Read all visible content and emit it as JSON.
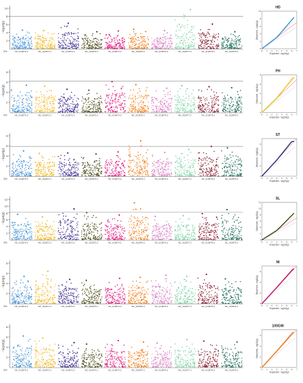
{
  "figure": {
    "chromosomes": [
      "NC_012870.2",
      "NC_012871.2",
      "NC_012872.2",
      "NC_012873.2",
      "NC_012874.2",
      "NC_012875.2",
      "NC_012876.2",
      "NC_012877.2",
      "NC_012878.2",
      "NC_012879.2"
    ],
    "chr_axis_title": "Chr",
    "manhattan_ylabel": "- log10(p)",
    "qq_ylabel": "Observed - log10(p)",
    "qq_xlabel": "Expected - log10(p)",
    "qq_x_ticks": [
      "0",
      "1",
      "2",
      "3",
      "4",
      "5",
      "6",
      "7"
    ]
  },
  "chart_data": [
    {
      "type": "scatter",
      "kind": "manhattan",
      "trait": "HD",
      "ylim": [
        0,
        10
      ],
      "y_ticks": [
        "2",
        "4",
        "6",
        "8",
        "10"
      ],
      "threshold": 8.0,
      "colors": [
        "#3f8fd4",
        "#f1b51c",
        "#3b2a8c",
        "#4b4a18",
        "#e0127a",
        "#f07a12",
        "#d77cc0",
        "#7fd1a6",
        "#861a2c",
        "#1e6a58"
      ],
      "series": [
        {
          "name": "NC_012870.2",
          "peak": 4.6
        },
        {
          "name": "NC_012871.2",
          "peak": 4.5
        },
        {
          "name": "NC_012872.2",
          "peak": 6.3
        },
        {
          "name": "NC_012873.2",
          "peak": 4.2
        },
        {
          "name": "NC_012874.2",
          "peak": 4.4
        },
        {
          "name": "NC_012875.2",
          "peak": 4.8
        },
        {
          "name": "NC_012876.2",
          "peak": 4.5
        },
        {
          "name": "NC_012877.2",
          "peak": 9.7
        },
        {
          "name": "NC_012878.2",
          "peak": 6.1
        },
        {
          "name": "NC_012879.2",
          "peak": 4.2
        }
      ]
    },
    {
      "type": "line",
      "kind": "qq",
      "trait": "HD",
      "qq_ymax": 10,
      "y_ticks": [
        "0",
        "2",
        "4",
        "6",
        "8",
        "10"
      ],
      "color": "#3f8fd4",
      "lambda_tail": 1.55
    },
    {
      "type": "scatter",
      "kind": "manhattan",
      "trait": "PH",
      "ylim": [
        0,
        8
      ],
      "y_ticks": [
        "2",
        "4",
        "6",
        "8"
      ],
      "threshold": 6.2,
      "colors": [
        "#3f8fd4",
        "#f1b51c",
        "#3b2a8c",
        "#4b4a18",
        "#e0127a",
        "#f07a12",
        "#d77cc0",
        "#7fd1a6",
        "#861a2c",
        "#1e6a58"
      ],
      "series": [
        {
          "name": "NC_012870.2",
          "peak": 5.4
        },
        {
          "name": "NC_012871.2",
          "peak": 5.2
        },
        {
          "name": "NC_012872.2",
          "peak": 4.6
        },
        {
          "name": "NC_012873.2",
          "peak": 4.4
        },
        {
          "name": "NC_012874.2",
          "peak": 6.1
        },
        {
          "name": "NC_012875.2",
          "peak": 5.5
        },
        {
          "name": "NC_012876.2",
          "peak": 4.8
        },
        {
          "name": "NC_012877.2",
          "peak": 5.3
        },
        {
          "name": "NC_012878.2",
          "peak": 5.1
        },
        {
          "name": "NC_012879.2",
          "peak": 4.9
        }
      ]
    },
    {
      "type": "line",
      "kind": "qq",
      "trait": "PH",
      "qq_ymax": 8,
      "y_ticks": [
        "0",
        "2",
        "4",
        "6",
        "8"
      ],
      "color": "#f1c21b",
      "lambda_tail": 1.35
    },
    {
      "type": "scatter",
      "kind": "manhattan",
      "trait": "ST",
      "ylim": [
        0,
        8
      ],
      "y_ticks": [
        "2",
        "4",
        "6",
        "8"
      ],
      "threshold": 5.9,
      "colors": [
        "#3f8fd4",
        "#f1b51c",
        "#3b2a8c",
        "#4b4a18",
        "#e0127a",
        "#f07a12",
        "#d77cc0",
        "#7fd1a6",
        "#861a2c",
        "#1e6a58"
      ],
      "series": [
        {
          "name": "NC_012870.2",
          "peak": 5.0
        },
        {
          "name": "NC_012871.2",
          "peak": 4.5
        },
        {
          "name": "NC_012872.2",
          "peak": 4.6
        },
        {
          "name": "NC_012873.2",
          "peak": 4.4
        },
        {
          "name": "NC_012874.2",
          "peak": 4.8
        },
        {
          "name": "NC_012875.2",
          "peak": 7.0
        },
        {
          "name": "NC_012876.2",
          "peak": 4.7
        },
        {
          "name": "NC_012877.2",
          "peak": 5.3
        },
        {
          "name": "NC_012878.2",
          "peak": 5.9
        },
        {
          "name": "NC_012879.2",
          "peak": 5.6
        }
      ]
    },
    {
      "type": "line",
      "kind": "qq",
      "trait": "ST",
      "qq_ymax": 7,
      "y_ticks": [
        "0",
        "2",
        "4",
        "6"
      ],
      "color": "#2a2a7a",
      "lambda_tail": 1.15
    },
    {
      "type": "scatter",
      "kind": "manhattan",
      "trait": "SL",
      "ylim": [
        0,
        12
      ],
      "y_ticks": [
        "2",
        "4",
        "6",
        "8",
        "10",
        "12"
      ],
      "threshold": 8.2,
      "colors": [
        "#3f8fd4",
        "#f1b51c",
        "#3b2a8c",
        "#4b4a18",
        "#e0127a",
        "#f07a12",
        "#d77cc0",
        "#7fd1a6",
        "#861a2c",
        "#1e6a58"
      ],
      "series": [
        {
          "name": "NC_012870.2",
          "peak": 7.6
        },
        {
          "name": "NC_012871.2",
          "peak": 6.8
        },
        {
          "name": "NC_012872.2",
          "peak": 9.2
        },
        {
          "name": "NC_012873.2",
          "peak": 8.1
        },
        {
          "name": "NC_012874.2",
          "peak": 7.4
        },
        {
          "name": "NC_012875.2",
          "peak": 11.0
        },
        {
          "name": "NC_012876.2",
          "peak": 7.0
        },
        {
          "name": "NC_012877.2",
          "peak": 7.2
        },
        {
          "name": "NC_012878.2",
          "peak": 7.8
        },
        {
          "name": "NC_012879.2",
          "peak": 9.0
        }
      ]
    },
    {
      "type": "line",
      "kind": "qq",
      "trait": "SL",
      "qq_ymax": 12,
      "y_ticks": [
        "0",
        "2",
        "4",
        "6",
        "8",
        "10",
        "12"
      ],
      "color": "#3a4a14",
      "lambda_tail": 1.6
    },
    {
      "type": "scatter",
      "kind": "manhattan",
      "trait": "NI",
      "ylim": [
        0,
        8
      ],
      "y_ticks": [
        "2",
        "4",
        "6",
        "8"
      ],
      "threshold": null,
      "colors": [
        "#3f8fd4",
        "#f1b51c",
        "#3b2a8c",
        "#4b4a18",
        "#e0127a",
        "#f07a12",
        "#d77cc0",
        "#7fd1a6",
        "#861a2c",
        "#1e6a58"
      ],
      "series": [
        {
          "name": "NC_012870.2",
          "peak": 5.4
        },
        {
          "name": "NC_012871.2",
          "peak": 6.4
        },
        {
          "name": "NC_012872.2",
          "peak": 4.8
        },
        {
          "name": "NC_012873.2",
          "peak": 4.6
        },
        {
          "name": "NC_012874.2",
          "peak": 5.0
        },
        {
          "name": "NC_012875.2",
          "peak": 5.2
        },
        {
          "name": "NC_012876.2",
          "peak": 5.6
        },
        {
          "name": "NC_012877.2",
          "peak": 5.4
        },
        {
          "name": "NC_012878.2",
          "peak": 5.8
        },
        {
          "name": "NC_012879.2",
          "peak": 4.9
        }
      ]
    },
    {
      "type": "line",
      "kind": "qq",
      "trait": "NI",
      "qq_ymax": 7,
      "y_ticks": [
        "0",
        "2",
        "4",
        "6"
      ],
      "color": "#c0106a",
      "lambda_tail": 1.05
    },
    {
      "type": "scatter",
      "kind": "manhattan",
      "trait": "100GW",
      "ylim": [
        0,
        8
      ],
      "y_ticks": [
        "2",
        "4",
        "6",
        "8"
      ],
      "threshold": null,
      "colors": [
        "#3f8fd4",
        "#f1b51c",
        "#3b2a8c",
        "#4b4a18",
        "#e0127a",
        "#f07a12",
        "#d77cc0",
        "#7fd1a6",
        "#861a2c",
        "#1e6a58"
      ],
      "series": [
        {
          "name": "NC_012870.2",
          "peak": 6.2
        },
        {
          "name": "NC_012871.2",
          "peak": 5.8
        },
        {
          "name": "NC_012872.2",
          "peak": 4.9
        },
        {
          "name": "NC_012873.2",
          "peak": 4.6
        },
        {
          "name": "NC_012874.2",
          "peak": 5.3
        },
        {
          "name": "NC_012875.2",
          "peak": 5.0
        },
        {
          "name": "NC_012876.2",
          "peak": 4.8
        },
        {
          "name": "NC_012877.2",
          "peak": 5.5
        },
        {
          "name": "NC_012878.2",
          "peak": 5.2
        },
        {
          "name": "NC_012879.2",
          "peak": 5.0
        }
      ]
    },
    {
      "type": "line",
      "kind": "qq",
      "trait": "100GW",
      "qq_ymax": 7,
      "y_ticks": [
        "0",
        "2",
        "4",
        "6"
      ],
      "color": "#f07a12",
      "lambda_tail": 1.08
    }
  ]
}
